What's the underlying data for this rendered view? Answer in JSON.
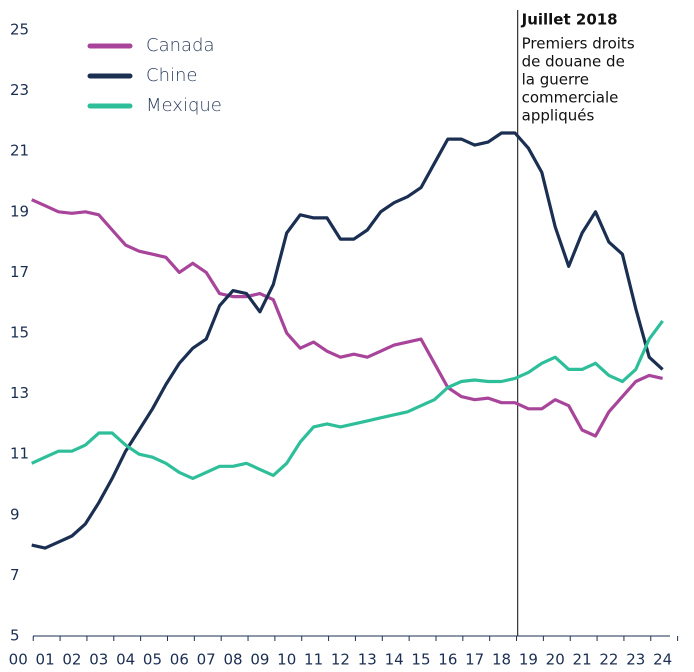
{
  "chart_data": {
    "type": "line",
    "x": [
      0.5,
      1,
      1.5,
      2,
      2.5,
      3,
      3.5,
      4,
      4.5,
      5,
      5.5,
      6,
      6.5,
      7,
      7.5,
      8,
      8.5,
      9,
      9.5,
      10,
      10.5,
      11,
      11.5,
      12,
      12.5,
      13,
      13.5,
      14,
      14.5,
      15,
      15.5,
      16,
      16.5,
      17,
      17.5,
      18,
      18.5,
      19,
      19.5,
      20,
      20.5,
      21,
      21.5,
      22,
      22.5,
      23,
      23.5,
      24
    ],
    "series": [
      {
        "name": "Canada",
        "color": "#a8449a",
        "values": [
          19.4,
          19.2,
          19.0,
          18.95,
          19.0,
          18.9,
          18.4,
          17.9,
          17.7,
          17.6,
          17.5,
          17.0,
          17.3,
          17.0,
          16.3,
          16.2,
          16.2,
          16.3,
          16.1,
          15.0,
          14.5,
          14.7,
          14.4,
          14.2,
          14.3,
          14.2,
          14.4,
          14.6,
          14.7,
          14.8,
          14.0,
          13.2,
          12.9,
          12.8,
          12.85,
          12.7,
          12.7,
          12.5,
          12.5,
          12.8,
          12.6,
          11.8,
          11.6,
          12.4,
          12.9,
          13.4,
          13.6,
          13.5
        ]
      },
      {
        "name": "Chine",
        "color": "#1b2f52",
        "values": [
          8.0,
          7.9,
          8.1,
          8.3,
          8.7,
          9.4,
          10.2,
          11.1,
          11.8,
          12.5,
          13.3,
          14.0,
          14.5,
          14.8,
          15.9,
          16.4,
          16.3,
          15.7,
          16.6,
          18.3,
          18.9,
          18.8,
          18.8,
          18.1,
          18.1,
          18.4,
          19.0,
          19.3,
          19.5,
          19.8,
          20.6,
          21.4,
          21.4,
          21.2,
          21.3,
          21.6,
          21.6,
          21.1,
          20.3,
          18.5,
          17.2,
          18.3,
          19.0,
          18.0,
          17.6,
          15.8,
          14.2,
          13.8
        ]
      },
      {
        "name": "Mexique",
        "color": "#2ebf9a",
        "values": [
          10.7,
          10.9,
          11.1,
          11.1,
          11.3,
          11.7,
          11.7,
          11.3,
          11.0,
          10.9,
          10.7,
          10.4,
          10.2,
          10.4,
          10.6,
          10.6,
          10.7,
          10.5,
          10.3,
          10.7,
          11.4,
          11.9,
          12.0,
          11.9,
          12.0,
          12.1,
          12.2,
          12.3,
          12.4,
          12.6,
          12.8,
          13.2,
          13.4,
          13.45,
          13.4,
          13.4,
          13.5,
          13.7,
          14.0,
          14.2,
          13.8,
          13.8,
          14.0,
          13.6,
          13.4,
          13.8,
          14.8,
          15.4
        ]
      }
    ],
    "xlim": [
      0.55,
      24.2
    ],
    "xticks": [
      {
        "value": 0,
        "label": "00"
      },
      {
        "value": 1,
        "label": "01"
      },
      {
        "value": 2,
        "label": "02"
      },
      {
        "value": 3,
        "label": "03"
      },
      {
        "value": 4,
        "label": "04"
      },
      {
        "value": 5,
        "label": "05"
      },
      {
        "value": 6,
        "label": "06"
      },
      {
        "value": 7,
        "label": "07"
      },
      {
        "value": 8,
        "label": "08"
      },
      {
        "value": 9,
        "label": "09"
      },
      10,
      11,
      12,
      13,
      14,
      15,
      16,
      17,
      18,
      19,
      20,
      21,
      22,
      23,
      24
    ],
    "ylim": [
      5,
      25
    ],
    "yticks": [
      5,
      7,
      9,
      11,
      13,
      15,
      17,
      19,
      21,
      23,
      25
    ],
    "legend": "top-left",
    "annotation": {
      "x": 18.6,
      "label": "Juillet 2018",
      "text": [
        "Premiers droits",
        "de douane de",
        "la guerre",
        "commerciale",
        "appliqués"
      ]
    }
  }
}
